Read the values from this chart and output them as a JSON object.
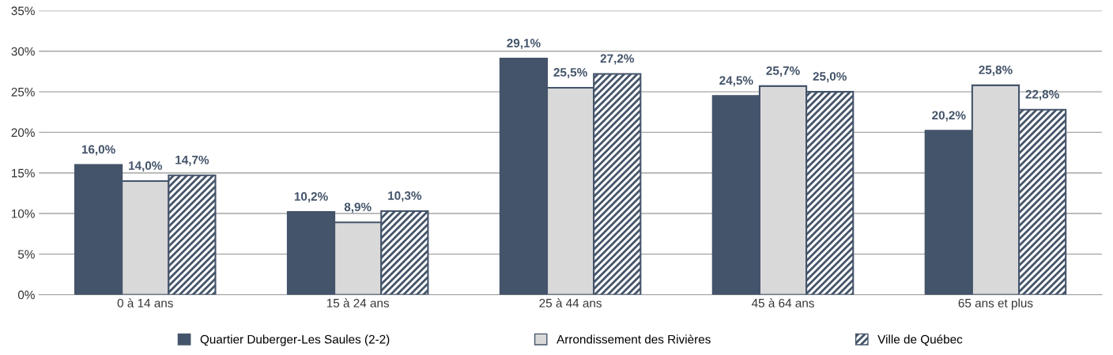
{
  "chart_data": {
    "type": "bar",
    "categories": [
      "0 à 14 ans",
      "15 à 24 ans",
      "25 à 44 ans",
      "45 à 64 ans",
      "65 ans et plus"
    ],
    "series": [
      {
        "name": "Quartier Duberger-Les Saules (2-2)",
        "color": "#44546a",
        "values": [
          16.0,
          10.2,
          29.1,
          24.5,
          20.2
        ],
        "value_labels": [
          "16,0%",
          "10,2%",
          "29,1%",
          "24,5%",
          "20,2%"
        ]
      },
      {
        "name": "Arrondissement des Rivières",
        "color": "#d9d9d9",
        "values": [
          14.0,
          8.9,
          25.5,
          25.7,
          25.8
        ],
        "value_labels": [
          "14,0%",
          "8,9%",
          "25,5%",
          "25,7%",
          "25,8%"
        ]
      },
      {
        "name": "Ville de Québec",
        "color": "#44546a",
        "values": [
          14.7,
          10.3,
          27.2,
          25.0,
          22.8
        ],
        "value_labels": [
          "14,7%",
          "10,3%",
          "27,2%",
          "25,0%",
          "22,8%"
        ]
      }
    ],
    "ylim": [
      0,
      35
    ],
    "yticks": [
      {
        "value": 0,
        "label": "0%"
      },
      {
        "value": 5,
        "label": "5%"
      },
      {
        "value": 10,
        "label": "10%"
      },
      {
        "value": 15,
        "label": "15%"
      },
      {
        "value": 20,
        "label": "20%"
      },
      {
        "value": 25,
        "label": "25%"
      },
      {
        "value": 30,
        "label": "30%"
      },
      {
        "value": 35,
        "label": "35%"
      }
    ],
    "grid": "y",
    "legend": "bottom"
  }
}
